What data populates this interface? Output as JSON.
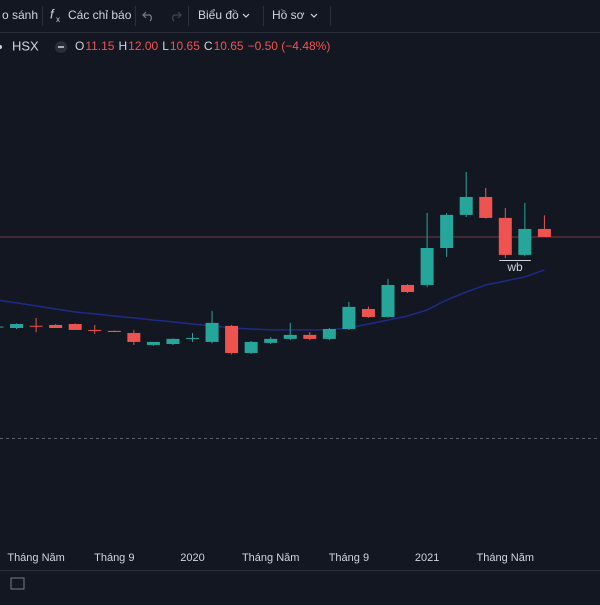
{
  "toolbar": {
    "compare": "o sánh",
    "indicators": "Các chỉ báo",
    "chart": "Biểu đồ",
    "profile": "Hồ sơ"
  },
  "legend": {
    "symbol": "HSX",
    "items": [
      {
        "label": "O",
        "value": "11.15"
      },
      {
        "label": "H",
        "value": "12.00"
      },
      {
        "label": "L",
        "value": "10.65"
      },
      {
        "label": "C",
        "value": "10.65"
      }
    ],
    "change": "−0.50 (−4.48%)"
  },
  "chart_data": {
    "type": "candlestick",
    "categories": [
      null,
      null,
      "Tháng Năm",
      null,
      null,
      null,
      "Tháng 9",
      null,
      null,
      null,
      "2020",
      null,
      null,
      null,
      "Tháng Năm",
      null,
      null,
      null,
      "Tháng 9",
      null,
      null,
      null,
      "2021",
      null,
      null,
      null,
      "Tháng Năm",
      null,
      null
    ],
    "open": [
      5.0,
      4.96,
      5.1,
      5.15,
      5.21,
      4.84,
      4.78,
      4.65,
      3.9,
      3.96,
      4.3,
      4.09,
      5.09,
      3.4,
      4.03,
      4.28,
      4.53,
      4.28,
      4.9,
      6.15,
      5.65,
      7.65,
      7.65,
      9.96,
      12.03,
      13.15,
      11.84,
      9.53,
      11.15
    ],
    "high": [
      5.1,
      5.25,
      5.59,
      5.2,
      5.25,
      5.15,
      4.8,
      4.84,
      4.0,
      4.3,
      4.65,
      6.03,
      5.15,
      4.15,
      4.4,
      5.28,
      4.7,
      4.96,
      6.59,
      6.3,
      8.03,
      7.7,
      12.15,
      12.15,
      14.71,
      13.71,
      12.46,
      12.78,
      12.0
    ],
    "low": [
      4.95,
      4.9,
      4.7,
      4.96,
      4.84,
      4.59,
      4.7,
      3.9,
      3.85,
      3.9,
      4.09,
      4.0,
      3.3,
      3.35,
      3.96,
      4.2,
      4.2,
      4.2,
      4.84,
      5.6,
      5.6,
      7.15,
      7.5,
      9.4,
      11.9,
      11.8,
      9.34,
      9.45,
      10.65
    ],
    "close": [
      5.05,
      5.21,
      5.09,
      4.96,
      4.84,
      4.82,
      4.71,
      4.09,
      4.09,
      4.28,
      4.34,
      5.28,
      3.4,
      4.09,
      4.28,
      4.53,
      4.28,
      4.9,
      6.28,
      5.65,
      7.65,
      7.21,
      9.96,
      12.03,
      13.15,
      11.84,
      9.53,
      11.15,
      10.65
    ],
    "ma": [
      6.71,
      6.53,
      6.34,
      6.15,
      5.96,
      5.84,
      5.71,
      5.59,
      5.46,
      5.34,
      5.21,
      5.09,
      4.96,
      4.9,
      4.84,
      4.84,
      4.84,
      4.84,
      4.96,
      5.21,
      5.46,
      5.71,
      6.09,
      6.71,
      7.21,
      7.65,
      7.9,
      8.15,
      8.59
    ],
    "up_color": "#26a69a",
    "down_color": "#ef5350",
    "ma_color": "#1e2a86",
    "price_line_color": "#7a3a44",
    "ylim": [
      -8.29,
      23.46
    ],
    "annotation": {
      "text": "wb",
      "index": 26
    }
  }
}
